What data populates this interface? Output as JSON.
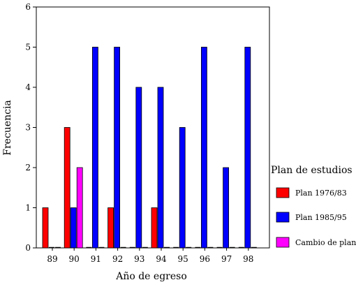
{
  "chart_data": {
    "type": "bar",
    "xlabel": "Año de egreso",
    "ylabel": "Frecuencia",
    "categories": [
      "89",
      "90",
      "91",
      "92",
      "93",
      "94",
      "95",
      "96",
      "97",
      "98"
    ],
    "ylim": [
      0,
      6
    ],
    "yticks": [
      "0",
      "1",
      "2",
      "3",
      "4",
      "5",
      "6"
    ],
    "grid": false,
    "legend": {
      "title": "Plan de estudios",
      "position": "right"
    },
    "series": [
      {
        "name": "Plan 1976/83",
        "color": "#ff0000",
        "values": [
          1,
          3,
          0,
          1,
          0,
          1,
          0,
          0,
          0,
          0
        ]
      },
      {
        "name": "Plan 1985/95",
        "color": "#0000ff",
        "values": [
          0,
          1,
          5,
          5,
          4,
          4,
          3,
          5,
          2,
          5
        ]
      },
      {
        "name": "Cambio de plan",
        "color": "#ff00ff",
        "values": [
          0,
          2,
          0,
          0,
          0,
          0,
          0,
          0,
          0,
          0
        ]
      }
    ]
  }
}
